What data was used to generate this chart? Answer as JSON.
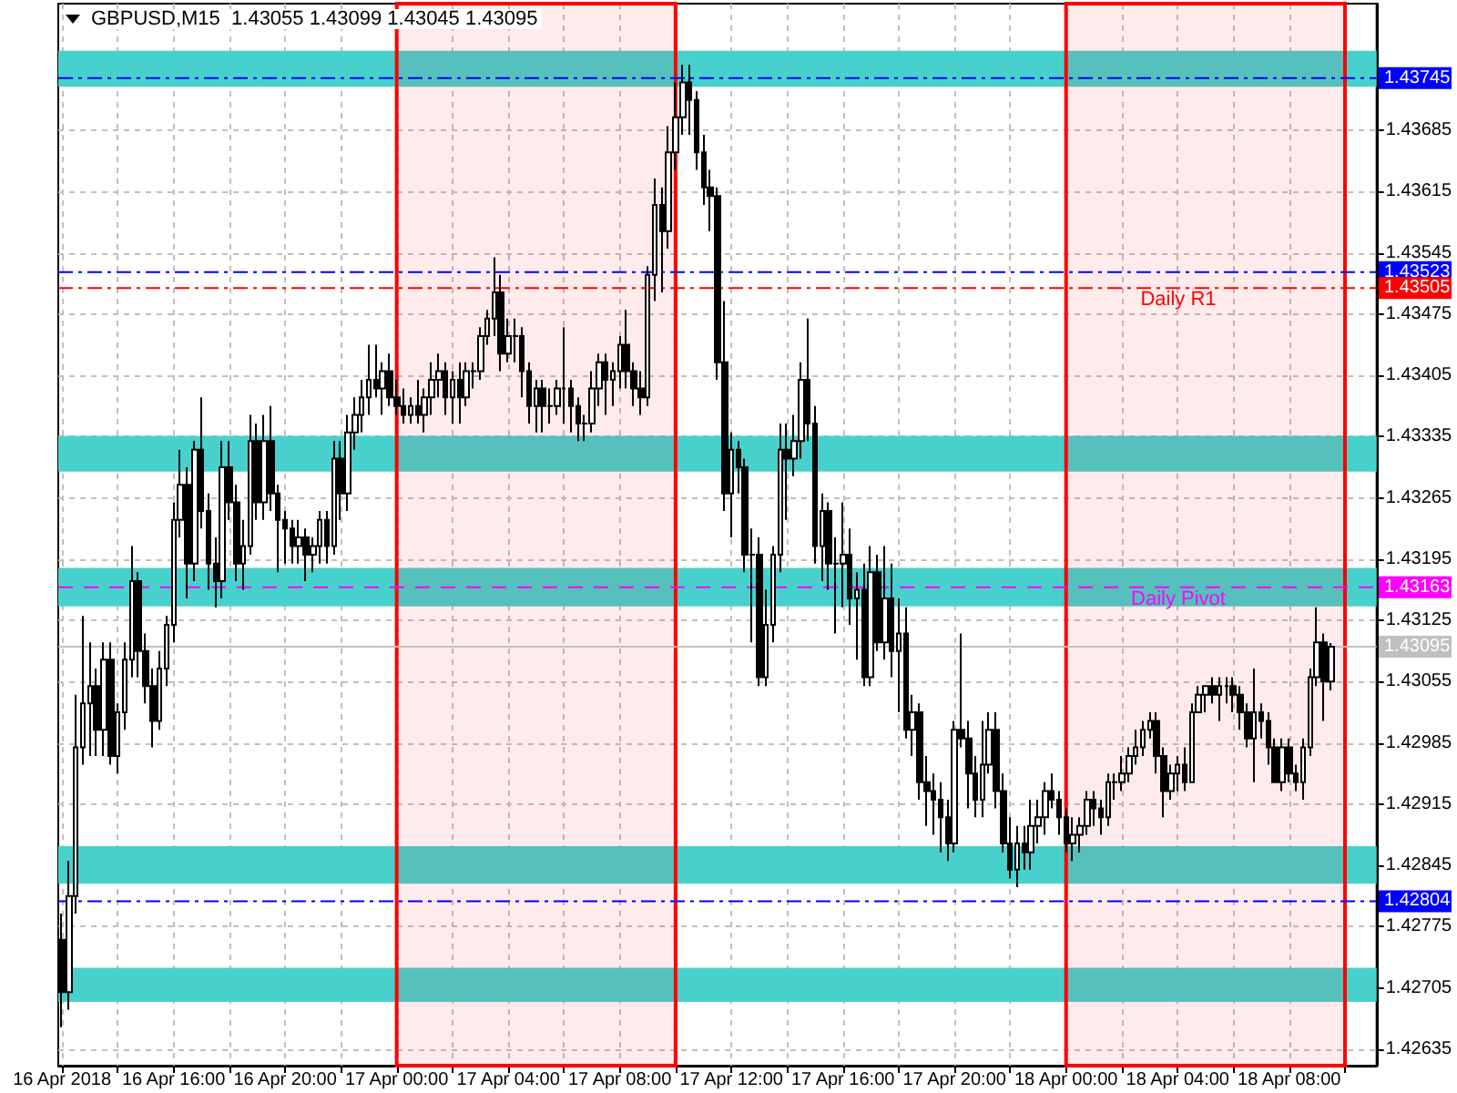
{
  "chart_data": {
    "type": "candlestick",
    "title": "GBPUSD,M15  1.43055 1.43099 1.43045 1.43095",
    "color": "#000000",
    "grid": true,
    "xlim": [
      "2018-04-16T11:52",
      "2018-04-18T11:08"
    ],
    "ylim": [
      1.42616,
      1.4383
    ],
    "yticks": [
      1.42635,
      1.42705,
      1.42775,
      1.42845,
      1.42915,
      1.42985,
      1.43055,
      1.43125,
      1.43195,
      1.43265,
      1.43335,
      1.43405,
      1.43475,
      1.43545,
      1.43615,
      1.43685
    ],
    "xticks": [
      {
        "value": "2018-04-16T12:00",
        "label": "16 Apr 2018"
      },
      {
        "value": "2018-04-16T14:00",
        "label": null
      },
      {
        "value": "2018-04-16T16:00",
        "label": "16 Apr 16:00"
      },
      {
        "value": "2018-04-16T18:00",
        "label": null
      },
      {
        "value": "2018-04-16T20:00",
        "label": "16 Apr 20:00"
      },
      {
        "value": "2018-04-16T22:00",
        "label": null
      },
      {
        "value": "2018-04-17T00:00",
        "label": "17 Apr 00:00"
      },
      {
        "value": "2018-04-17T02:00",
        "label": null
      },
      {
        "value": "2018-04-17T04:00",
        "label": "17 Apr 04:00"
      },
      {
        "value": "2018-04-17T06:00",
        "label": null
      },
      {
        "value": "2018-04-17T08:00",
        "label": "17 Apr 08:00"
      },
      {
        "value": "2018-04-17T10:00",
        "label": null
      },
      {
        "value": "2018-04-17T12:00",
        "label": "17 Apr 12:00"
      },
      {
        "value": "2018-04-17T14:00",
        "label": null
      },
      {
        "value": "2018-04-17T16:00",
        "label": "17 Apr 16:00"
      },
      {
        "value": "2018-04-17T18:00",
        "label": null
      },
      {
        "value": "2018-04-17T20:00",
        "label": "17 Apr 20:00"
      },
      {
        "value": "2018-04-17T22:00",
        "label": null
      },
      {
        "value": "2018-04-18T00:00",
        "label": "18 Apr 00:00"
      },
      {
        "value": "2018-04-18T02:00",
        "label": null
      },
      {
        "value": "2018-04-18T04:00",
        "label": "18 Apr 04:00"
      },
      {
        "value": "2018-04-18T06:00",
        "label": null
      },
      {
        "value": "2018-04-18T08:00",
        "label": "18 Apr 08:00"
      },
      {
        "value": "2018-04-18T10:00",
        "label": null
      }
    ],
    "ref_lines": [
      {
        "axis": "y",
        "value": 1.43745,
        "label": null,
        "color": "#0000ff",
        "line_style": "dashdot"
      },
      {
        "axis": "y",
        "value": 1.43523,
        "label": null,
        "color": "#0000ff",
        "line_style": "dashdot"
      },
      {
        "axis": "y",
        "value": 1.43505,
        "label": "Daily R1",
        "color": "#ff0000",
        "line_style": "dashdot"
      },
      {
        "axis": "y",
        "value": 1.43163,
        "label": "Daily Pivot",
        "color": "#ff00ff",
        "line_style": "dashed"
      },
      {
        "axis": "y",
        "value": 1.43095,
        "label": null,
        "color": "#c0c0c0",
        "line_style": "solid"
      },
      {
        "axis": "y",
        "value": 1.42804,
        "label": null,
        "color": "#0000ff",
        "line_style": "dashdot"
      }
    ],
    "bands": [
      {
        "axis": "y",
        "from": 1.42689,
        "to": 1.42728,
        "color": "#48d1cc"
      },
      {
        "axis": "y",
        "from": 1.43735,
        "to": 1.43776,
        "color": "#48d1cc"
      },
      {
        "axis": "y",
        "from": 1.43295,
        "to": 1.43336,
        "color": "#48d1cc"
      },
      {
        "axis": "y",
        "from": 1.43141,
        "to": 1.43185,
        "color": "#48d1cc"
      },
      {
        "axis": "y",
        "from": 1.42824,
        "to": 1.42867,
        "color": "#48d1cc"
      },
      {
        "axis": "x",
        "from": "2018-04-17T00:00",
        "to": "2018-04-17T10:00",
        "color": "#ff0000"
      },
      {
        "axis": "x",
        "from": "2018-04-18T00:00",
        "to": "2018-04-18T10:00",
        "color": "#ff0000"
      }
    ],
    "annotations": [
      {
        "text": "1.43745",
        "y": 1.43745
      },
      {
        "text": "1.43523",
        "y": 1.43523
      },
      {
        "text": "1.43505",
        "y": 1.43505
      },
      {
        "text": "1.43163",
        "y": 1.43163
      },
      {
        "text": "1.43095",
        "y": 1.43095
      },
      {
        "text": "1.42804",
        "y": 1.42804
      }
    ],
    "x": [
      "2018-04-16T12:00",
      "2018-04-16T12:15",
      "2018-04-16T12:30",
      "2018-04-16T12:45",
      "2018-04-16T13:00",
      "2018-04-16T13:15",
      "2018-04-16T13:30",
      "2018-04-16T13:45",
      "2018-04-16T14:00",
      "2018-04-16T14:15",
      "2018-04-16T14:30",
      "2018-04-16T14:45",
      "2018-04-16T15:00",
      "2018-04-16T15:15",
      "2018-04-16T15:30",
      "2018-04-16T15:45",
      "2018-04-16T16:00",
      "2018-04-16T16:15",
      "2018-04-16T16:30",
      "2018-04-16T16:45",
      "2018-04-16T17:00",
      "2018-04-16T17:15",
      "2018-04-16T17:30",
      "2018-04-16T17:45",
      "2018-04-16T18:00",
      "2018-04-16T18:15",
      "2018-04-16T18:30",
      "2018-04-16T18:45",
      "2018-04-16T19:00",
      "2018-04-16T19:15",
      "2018-04-16T19:30",
      "2018-04-16T19:45",
      "2018-04-16T20:00",
      "2018-04-16T20:15",
      "2018-04-16T20:30",
      "2018-04-16T20:45",
      "2018-04-16T21:00",
      "2018-04-16T21:15",
      "2018-04-16T21:30",
      "2018-04-16T21:45",
      "2018-04-16T22:00",
      "2018-04-16T22:15",
      "2018-04-16T22:30",
      "2018-04-16T22:45",
      "2018-04-16T23:00",
      "2018-04-16T23:15",
      "2018-04-16T23:30",
      "2018-04-16T23:45",
      "2018-04-17T00:00",
      "2018-04-17T00:15",
      "2018-04-17T00:30",
      "2018-04-17T00:45",
      "2018-04-17T01:00",
      "2018-04-17T01:15",
      "2018-04-17T01:30",
      "2018-04-17T01:45",
      "2018-04-17T02:00",
      "2018-04-17T02:15",
      "2018-04-17T02:30",
      "2018-04-17T02:45",
      "2018-04-17T03:00",
      "2018-04-17T03:15",
      "2018-04-17T03:30",
      "2018-04-17T03:45",
      "2018-04-17T04:00",
      "2018-04-17T04:15",
      "2018-04-17T04:30",
      "2018-04-17T04:45",
      "2018-04-17T05:00",
      "2018-04-17T05:15",
      "2018-04-17T05:30",
      "2018-04-17T05:45",
      "2018-04-17T06:00",
      "2018-04-17T06:15",
      "2018-04-17T06:30",
      "2018-04-17T06:45",
      "2018-04-17T07:00",
      "2018-04-17T07:15",
      "2018-04-17T07:30",
      "2018-04-17T07:45",
      "2018-04-17T08:00",
      "2018-04-17T08:15",
      "2018-04-17T08:30",
      "2018-04-17T08:45",
      "2018-04-17T09:00",
      "2018-04-17T09:15",
      "2018-04-17T09:30",
      "2018-04-17T09:45",
      "2018-04-17T10:00",
      "2018-04-17T10:15",
      "2018-04-17T10:30",
      "2018-04-17T10:45",
      "2018-04-17T11:00",
      "2018-04-17T11:15",
      "2018-04-17T11:30",
      "2018-04-17T11:45",
      "2018-04-17T12:00",
      "2018-04-17T12:15",
      "2018-04-17T12:30",
      "2018-04-17T12:45",
      "2018-04-17T13:00",
      "2018-04-17T13:15",
      "2018-04-17T13:30",
      "2018-04-17T13:45",
      "2018-04-17T14:00",
      "2018-04-17T14:15",
      "2018-04-17T14:30",
      "2018-04-17T14:45",
      "2018-04-17T15:00",
      "2018-04-17T15:15",
      "2018-04-17T15:30",
      "2018-04-17T15:45",
      "2018-04-17T16:00",
      "2018-04-17T16:15",
      "2018-04-17T16:30",
      "2018-04-17T16:45",
      "2018-04-17T17:00",
      "2018-04-17T17:15",
      "2018-04-17T17:30",
      "2018-04-17T17:45",
      "2018-04-17T18:00",
      "2018-04-17T18:15",
      "2018-04-17T18:30",
      "2018-04-17T18:45",
      "2018-04-17T19:00",
      "2018-04-17T19:15",
      "2018-04-17T19:30",
      "2018-04-17T19:45",
      "2018-04-17T20:00",
      "2018-04-17T20:15",
      "2018-04-17T20:30",
      "2018-04-17T20:45",
      "2018-04-17T21:00",
      "2018-04-17T21:15",
      "2018-04-17T21:30",
      "2018-04-17T21:45",
      "2018-04-17T22:00",
      "2018-04-17T22:15",
      "2018-04-17T22:30",
      "2018-04-17T22:45",
      "2018-04-17T23:00",
      "2018-04-17T23:15",
      "2018-04-17T23:30",
      "2018-04-17T23:45",
      "2018-04-18T00:00",
      "2018-04-18T00:15",
      "2018-04-18T00:30",
      "2018-04-18T00:45",
      "2018-04-18T01:00",
      "2018-04-18T01:15",
      "2018-04-18T01:30",
      "2018-04-18T01:45",
      "2018-04-18T02:00",
      "2018-04-18T02:15",
      "2018-04-18T02:30",
      "2018-04-18T02:45",
      "2018-04-18T03:00",
      "2018-04-18T03:15",
      "2018-04-18T03:30",
      "2018-04-18T03:45",
      "2018-04-18T04:00",
      "2018-04-18T04:15",
      "2018-04-18T04:30",
      "2018-04-18T04:45",
      "2018-04-18T05:00",
      "2018-04-18T05:15",
      "2018-04-18T05:30",
      "2018-04-18T05:45",
      "2018-04-18T06:00",
      "2018-04-18T06:15",
      "2018-04-18T06:30",
      "2018-04-18T06:45",
      "2018-04-18T07:00",
      "2018-04-18T07:15",
      "2018-04-18T07:30",
      "2018-04-18T07:45",
      "2018-04-18T08:00",
      "2018-04-18T08:15",
      "2018-04-18T08:30",
      "2018-04-18T08:45",
      "2018-04-18T09:00",
      "2018-04-18T09:15",
      "2018-04-18T09:30"
    ],
    "ohlc": [
      [
        1.4276,
        1.4279,
        1.4266,
        1.427
      ],
      [
        1.427,
        1.4285,
        1.4268,
        1.4281
      ],
      [
        1.4281,
        1.4304,
        1.4279,
        1.4298
      ],
      [
        1.4298,
        1.4313,
        1.4296,
        1.4303
      ],
      [
        1.4303,
        1.431,
        1.4297,
        1.4305
      ],
      [
        1.4305,
        1.4307,
        1.4297,
        1.43
      ],
      [
        1.43,
        1.431,
        1.4297,
        1.4308
      ],
      [
        1.4308,
        1.431,
        1.4296,
        1.4297
      ],
      [
        1.4297,
        1.4303,
        1.4295,
        1.4302
      ],
      [
        1.4302,
        1.431,
        1.43,
        1.4308
      ],
      [
        1.4308,
        1.4321,
        1.4306,
        1.4317
      ],
      [
        1.4317,
        1.4318,
        1.4306,
        1.4309
      ],
      [
        1.4309,
        1.4311,
        1.4303,
        1.4305
      ],
      [
        1.4305,
        1.4307,
        1.4298,
        1.4301
      ],
      [
        1.4301,
        1.4309,
        1.43,
        1.4307
      ],
      [
        1.4307,
        1.4313,
        1.4305,
        1.4312
      ],
      [
        1.4312,
        1.4326,
        1.431,
        1.4324
      ],
      [
        1.4324,
        1.4332,
        1.4322,
        1.4328
      ],
      [
        1.4328,
        1.433,
        1.4315,
        1.4319
      ],
      [
        1.4319,
        1.4333,
        1.4317,
        1.4332
      ],
      [
        1.4332,
        1.4338,
        1.4323,
        1.4325
      ],
      [
        1.4325,
        1.4327,
        1.4316,
        1.4319
      ],
      [
        1.4319,
        1.4322,
        1.4314,
        1.4317
      ],
      [
        1.4317,
        1.4333,
        1.4315,
        1.433
      ],
      [
        1.433,
        1.4333,
        1.4324,
        1.4326
      ],
      [
        1.4326,
        1.4328,
        1.4317,
        1.4319
      ],
      [
        1.4319,
        1.4324,
        1.4316,
        1.4321
      ],
      [
        1.4321,
        1.4336,
        1.432,
        1.4333
      ],
      [
        1.4333,
        1.4335,
        1.4324,
        1.4326
      ],
      [
        1.4326,
        1.4336,
        1.4324,
        1.4333
      ],
      [
        1.4333,
        1.4337,
        1.4325,
        1.4327
      ],
      [
        1.4327,
        1.4328,
        1.4318,
        1.4324
      ],
      [
        1.4324,
        1.4325,
        1.4319,
        1.4323
      ],
      [
        1.4323,
        1.4324,
        1.4319,
        1.4321
      ],
      [
        1.4321,
        1.4324,
        1.4319,
        1.4322
      ],
      [
        1.4322,
        1.4323,
        1.4317,
        1.432
      ],
      [
        1.432,
        1.4322,
        1.4318,
        1.4321
      ],
      [
        1.4321,
        1.4325,
        1.4319,
        1.4324
      ],
      [
        1.4324,
        1.4325,
        1.4319,
        1.4321
      ],
      [
        1.4321,
        1.4333,
        1.432,
        1.4331
      ],
      [
        1.4331,
        1.4333,
        1.4324,
        1.4327
      ],
      [
        1.4327,
        1.4336,
        1.4325,
        1.4334
      ],
      [
        1.4334,
        1.4338,
        1.4332,
        1.4336
      ],
      [
        1.4336,
        1.434,
        1.4334,
        1.4338
      ],
      [
        1.4338,
        1.4344,
        1.4336,
        1.434
      ],
      [
        1.434,
        1.4344,
        1.4338,
        1.4339
      ],
      [
        1.4339,
        1.4342,
        1.4336,
        1.4341
      ],
      [
        1.4341,
        1.4343,
        1.4337,
        1.4338
      ],
      [
        1.4338,
        1.434,
        1.4336,
        1.4337
      ],
      [
        1.4337,
        1.4339,
        1.4335,
        1.4336
      ],
      [
        1.4336,
        1.4338,
        1.4335,
        1.4337
      ],
      [
        1.4337,
        1.434,
        1.4335,
        1.4336
      ],
      [
        1.4336,
        1.4339,
        1.4334,
        1.4338
      ],
      [
        1.4338,
        1.4342,
        1.4336,
        1.434
      ],
      [
        1.434,
        1.4343,
        1.4338,
        1.4341
      ],
      [
        1.4341,
        1.4342,
        1.4336,
        1.4338
      ],
      [
        1.4338,
        1.4341,
        1.4335,
        1.434
      ],
      [
        1.434,
        1.4342,
        1.4335,
        1.4338
      ],
      [
        1.4338,
        1.4342,
        1.4337,
        1.4341
      ],
      [
        1.4341,
        1.4342,
        1.4339,
        1.4341
      ],
      [
        1.4341,
        1.4346,
        1.434,
        1.4345
      ],
      [
        1.4345,
        1.4348,
        1.4344,
        1.4347
      ],
      [
        1.4347,
        1.4354,
        1.4345,
        1.435
      ],
      [
        1.435,
        1.4352,
        1.4341,
        1.4343
      ],
      [
        1.4343,
        1.4347,
        1.4342,
        1.4345
      ],
      [
        1.4345,
        1.4347,
        1.4342,
        1.4345
      ],
      [
        1.4345,
        1.4346,
        1.4338,
        1.4341
      ],
      [
        1.4341,
        1.4342,
        1.4335,
        1.4337
      ],
      [
        1.4337,
        1.434,
        1.4334,
        1.4339
      ],
      [
        1.4339,
        1.434,
        1.4334,
        1.4337
      ],
      [
        1.4337,
        1.4339,
        1.4335,
        1.4337
      ],
      [
        1.4337,
        1.434,
        1.4336,
        1.4339
      ],
      [
        1.4339,
        1.4346,
        1.4335,
        1.4339
      ],
      [
        1.4339,
        1.434,
        1.4334,
        1.4337
      ],
      [
        1.4337,
        1.4338,
        1.4333,
        1.4335
      ],
      [
        1.4335,
        1.4336,
        1.4333,
        1.4335
      ],
      [
        1.4335,
        1.4341,
        1.4334,
        1.4339
      ],
      [
        1.4339,
        1.4343,
        1.4337,
        1.4342
      ],
      [
        1.4342,
        1.4343,
        1.4336,
        1.434
      ],
      [
        1.434,
        1.4342,
        1.4337,
        1.4341
      ],
      [
        1.4341,
        1.4345,
        1.4339,
        1.4344
      ],
      [
        1.4344,
        1.4348,
        1.4339,
        1.4341
      ],
      [
        1.4341,
        1.4342,
        1.4337,
        1.4339
      ],
      [
        1.4339,
        1.4341,
        1.4336,
        1.4338
      ],
      [
        1.4338,
        1.4353,
        1.4337,
        1.4352
      ],
      [
        1.4352,
        1.4363,
        1.4349,
        1.436
      ],
      [
        1.436,
        1.4362,
        1.435,
        1.4357
      ],
      [
        1.4357,
        1.4369,
        1.4355,
        1.4366
      ],
      [
        1.4366,
        1.4374,
        1.4364,
        1.437
      ],
      [
        1.437,
        1.4376,
        1.4368,
        1.4374
      ],
      [
        1.4374,
        1.4376,
        1.4368,
        1.4372
      ],
      [
        1.4372,
        1.4373,
        1.4364,
        1.4366
      ],
      [
        1.4366,
        1.4368,
        1.436,
        1.4362
      ],
      [
        1.4362,
        1.4364,
        1.4357,
        1.4361
      ],
      [
        1.4361,
        1.4362,
        1.434,
        1.4342
      ],
      [
        1.4342,
        1.4349,
        1.4325,
        1.4327
      ],
      [
        1.4327,
        1.4334,
        1.4322,
        1.4332
      ],
      [
        1.4332,
        1.4333,
        1.4327,
        1.433
      ],
      [
        1.433,
        1.4331,
        1.4318,
        1.432
      ],
      [
        1.432,
        1.4323,
        1.431,
        1.432
      ],
      [
        1.432,
        1.4322,
        1.4305,
        1.4306
      ],
      [
        1.4306,
        1.4316,
        1.4305,
        1.4312
      ],
      [
        1.4312,
        1.4321,
        1.431,
        1.432
      ],
      [
        1.432,
        1.4335,
        1.4318,
        1.4332
      ],
      [
        1.4332,
        1.4335,
        1.4324,
        1.4331
      ],
      [
        1.4331,
        1.4336,
        1.4329,
        1.4333
      ],
      [
        1.4333,
        1.4342,
        1.4331,
        1.434
      ],
      [
        1.434,
        1.4347,
        1.4333,
        1.4335
      ],
      [
        1.4335,
        1.4337,
        1.4319,
        1.4321
      ],
      [
        1.4321,
        1.4327,
        1.4317,
        1.4325
      ],
      [
        1.4325,
        1.4326,
        1.4316,
        1.4319
      ],
      [
        1.4319,
        1.4322,
        1.4311,
        1.4319
      ],
      [
        1.4319,
        1.4326,
        1.4314,
        1.432
      ],
      [
        1.432,
        1.4323,
        1.4312,
        1.4315
      ],
      [
        1.4315,
        1.4318,
        1.4308,
        1.4316
      ],
      [
        1.4316,
        1.4319,
        1.4305,
        1.4306
      ],
      [
        1.4306,
        1.4321,
        1.4305,
        1.4318
      ],
      [
        1.4318,
        1.432,
        1.4309,
        1.431
      ],
      [
        1.431,
        1.4321,
        1.4308,
        1.4315
      ],
      [
        1.4315,
        1.4319,
        1.4306,
        1.4309
      ],
      [
        1.4309,
        1.4315,
        1.4302,
        1.4311
      ],
      [
        1.4311,
        1.4314,
        1.4299,
        1.43
      ],
      [
        1.43,
        1.4304,
        1.4297,
        1.4302
      ],
      [
        1.4302,
        1.4303,
        1.4292,
        1.4294
      ],
      [
        1.4294,
        1.4297,
        1.4289,
        1.4293
      ],
      [
        1.4293,
        1.4295,
        1.4288,
        1.4292
      ],
      [
        1.4292,
        1.4294,
        1.4286,
        1.429
      ],
      [
        1.429,
        1.4292,
        1.4285,
        1.4287
      ],
      [
        1.4287,
        1.4301,
        1.4286,
        1.43
      ],
      [
        1.43,
        1.4311,
        1.4298,
        1.4299
      ],
      [
        1.4299,
        1.4301,
        1.4291,
        1.4295
      ],
      [
        1.4295,
        1.4297,
        1.429,
        1.4292
      ],
      [
        1.4292,
        1.4301,
        1.429,
        1.4296
      ],
      [
        1.4296,
        1.4302,
        1.4295,
        1.43
      ],
      [
        1.43,
        1.4302,
        1.4291,
        1.4293
      ],
      [
        1.4293,
        1.4295,
        1.4286,
        1.4287
      ],
      [
        1.4287,
        1.429,
        1.4283,
        1.4284
      ],
      [
        1.4284,
        1.4289,
        1.4282,
        1.4287
      ],
      [
        1.4287,
        1.4289,
        1.4284,
        1.4286
      ],
      [
        1.4286,
        1.4292,
        1.4284,
        1.4289
      ],
      [
        1.4289,
        1.4292,
        1.4287,
        1.429
      ],
      [
        1.429,
        1.4294,
        1.4288,
        1.4293
      ],
      [
        1.4293,
        1.4295,
        1.4291,
        1.4292
      ],
      [
        1.4292,
        1.4293,
        1.4288,
        1.429
      ],
      [
        1.429,
        1.4291,
        1.4286,
        1.4287
      ],
      [
        1.4287,
        1.429,
        1.4285,
        1.4288
      ],
      [
        1.4288,
        1.429,
        1.4286,
        1.4289
      ],
      [
        1.4289,
        1.4293,
        1.4288,
        1.4292
      ],
      [
        1.4292,
        1.4293,
        1.4289,
        1.4291
      ],
      [
        1.4291,
        1.4292,
        1.4288,
        1.429
      ],
      [
        1.429,
        1.4295,
        1.4289,
        1.4294
      ],
      [
        1.4294,
        1.4295,
        1.4292,
        1.4294
      ],
      [
        1.4294,
        1.4297,
        1.4293,
        1.4295
      ],
      [
        1.4295,
        1.4298,
        1.4294,
        1.4297
      ],
      [
        1.4297,
        1.43,
        1.4296,
        1.4298
      ],
      [
        1.4298,
        1.4301,
        1.4297,
        1.43
      ],
      [
        1.43,
        1.4302,
        1.4299,
        1.4301
      ],
      [
        1.4301,
        1.4302,
        1.4295,
        1.4297
      ],
      [
        1.4297,
        1.4298,
        1.429,
        1.4293
      ],
      [
        1.4293,
        1.4296,
        1.4292,
        1.4295
      ],
      [
        1.4295,
        1.4297,
        1.4293,
        1.4296
      ],
      [
        1.4296,
        1.4298,
        1.4293,
        1.4294
      ],
      [
        1.4294,
        1.4303,
        1.4294,
        1.4302
      ],
      [
        1.4302,
        1.4305,
        1.4302,
        1.4304
      ],
      [
        1.4304,
        1.4305,
        1.4302,
        1.4305
      ],
      [
        1.4305,
        1.4306,
        1.4303,
        1.4304
      ],
      [
        1.4304,
        1.4306,
        1.4301,
        1.4305
      ],
      [
        1.4305,
        1.4306,
        1.4303,
        1.4305
      ],
      [
        1.4305,
        1.4306,
        1.4302,
        1.4304
      ],
      [
        1.4304,
        1.4305,
        1.43,
        1.4302
      ],
      [
        1.4302,
        1.4303,
        1.4298,
        1.4299
      ],
      [
        1.4299,
        1.4307,
        1.4294,
        1.4302
      ],
      [
        1.4302,
        1.4303,
        1.4299,
        1.4301
      ],
      [
        1.4301,
        1.4302,
        1.4296,
        1.4298
      ],
      [
        1.4298,
        1.4299,
        1.4294,
        1.4294
      ],
      [
        1.4294,
        1.4299,
        1.4293,
        1.4298
      ],
      [
        1.4298,
        1.4299,
        1.4294,
        1.4295
      ],
      [
        1.4295,
        1.4296,
        1.4293,
        1.4294
      ],
      [
        1.4294,
        1.4299,
        1.4292,
        1.4298
      ],
      [
        1.4298,
        1.4307,
        1.4297,
        1.4306
      ],
      [
        1.4306,
        1.4314,
        1.4305,
        1.431
      ],
      [
        1.431,
        1.4311,
        1.4301,
        1.43055
      ],
      [
        1.43055,
        1.43099,
        1.43045,
        1.43095
      ]
    ]
  }
}
